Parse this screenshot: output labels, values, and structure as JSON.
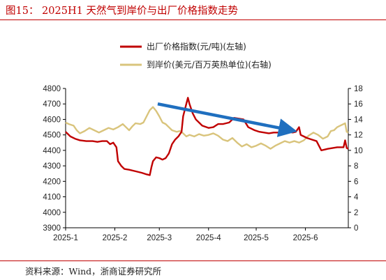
{
  "figure": {
    "title": "图15： 2025H1 天然气到岸价与出厂价格指数走势",
    "source": "资料来源：Wind，浙商证券研究所"
  },
  "colors": {
    "accent": "#c00000",
    "series_factory": "#c00000",
    "series_landed": "#d9c47c",
    "trend_arrow": "#1f6fbf",
    "axis": "#000000"
  },
  "chart_data": {
    "type": "line",
    "title": "",
    "x_ticks": [
      "2025-1",
      "2025-2",
      "2025-3",
      "2025-4",
      "2025-5",
      "2025-6"
    ],
    "x_range": [
      "2025-01-01",
      "2025-06-28"
    ],
    "left_axis": {
      "ylim": [
        3900,
        4800
      ],
      "ticks": [
        3900,
        4000,
        4100,
        4200,
        4300,
        4400,
        4500,
        4600,
        4700,
        4800
      ]
    },
    "right_axis": {
      "ylim": [
        0,
        18
      ],
      "ticks": [
        0,
        2,
        4,
        6,
        8,
        10,
        12,
        14,
        16,
        18
      ]
    },
    "legend_position": "top",
    "series": [
      {
        "name": "出厂价格指数(元/吨)(左轴)",
        "axis": "left",
        "points": [
          [
            "2025-01-01",
            4520
          ],
          [
            "2025-01-04",
            4490
          ],
          [
            "2025-01-07",
            4475
          ],
          [
            "2025-01-10",
            4465
          ],
          [
            "2025-01-14",
            4460
          ],
          [
            "2025-01-18",
            4460
          ],
          [
            "2025-01-21",
            4455
          ],
          [
            "2025-01-24",
            4460
          ],
          [
            "2025-01-27",
            4460
          ],
          [
            "2025-01-29",
            4440
          ],
          [
            "2025-01-31",
            4450
          ],
          [
            "2025-02-02",
            4420
          ],
          [
            "2025-02-03",
            4330
          ],
          [
            "2025-02-05",
            4300
          ],
          [
            "2025-02-07",
            4280
          ],
          [
            "2025-02-10",
            4275
          ],
          [
            "2025-02-14",
            4265
          ],
          [
            "2025-02-18",
            4255
          ],
          [
            "2025-02-21",
            4245
          ],
          [
            "2025-02-23",
            4240
          ],
          [
            "2025-02-24",
            4290
          ],
          [
            "2025-02-25",
            4330
          ],
          [
            "2025-02-27",
            4355
          ],
          [
            "2025-03-01",
            4350
          ],
          [
            "2025-03-03",
            4340
          ],
          [
            "2025-03-05",
            4350
          ],
          [
            "2025-03-07",
            4380
          ],
          [
            "2025-03-09",
            4440
          ],
          [
            "2025-03-11",
            4470
          ],
          [
            "2025-03-13",
            4490
          ],
          [
            "2025-03-15",
            4520
          ],
          [
            "2025-03-16",
            4620
          ],
          [
            "2025-03-18",
            4700
          ],
          [
            "2025-03-19",
            4740
          ],
          [
            "2025-03-20",
            4700
          ],
          [
            "2025-03-22",
            4640
          ],
          [
            "2025-03-24",
            4600
          ],
          [
            "2025-03-26",
            4580
          ],
          [
            "2025-03-28",
            4560
          ],
          [
            "2025-04-01",
            4545
          ],
          [
            "2025-04-04",
            4550
          ],
          [
            "2025-04-07",
            4570
          ],
          [
            "2025-04-10",
            4570
          ],
          [
            "2025-04-14",
            4580
          ],
          [
            "2025-04-17",
            4610
          ],
          [
            "2025-04-20",
            4605
          ],
          [
            "2025-04-23",
            4600
          ],
          [
            "2025-04-26",
            4550
          ],
          [
            "2025-04-30",
            4530
          ],
          [
            "2025-05-03",
            4520
          ],
          [
            "2025-05-06",
            4515
          ],
          [
            "2025-05-09",
            4510
          ],
          [
            "2025-05-12",
            4515
          ],
          [
            "2025-05-15",
            4515
          ],
          [
            "2025-05-18",
            4520
          ],
          [
            "2025-05-21",
            4520
          ],
          [
            "2025-05-24",
            4515
          ],
          [
            "2025-05-26",
            4520
          ],
          [
            "2025-05-28",
            4550
          ],
          [
            "2025-05-29",
            4500
          ],
          [
            "2025-05-31",
            4490
          ],
          [
            "2025-06-02",
            4480
          ],
          [
            "2025-06-05",
            4470
          ],
          [
            "2025-06-08",
            4460
          ],
          [
            "2025-06-10",
            4420
          ],
          [
            "2025-06-11",
            4400
          ],
          [
            "2025-06-13",
            4405
          ],
          [
            "2025-06-15",
            4410
          ],
          [
            "2025-06-18",
            4415
          ],
          [
            "2025-06-21",
            4420
          ],
          [
            "2025-06-23",
            4420
          ],
          [
            "2025-06-25",
            4420
          ],
          [
            "2025-06-26",
            4465
          ],
          [
            "2025-06-27",
            4415
          ],
          [
            "2025-06-28",
            4410
          ]
        ]
      },
      {
        "name": "到岸价(美元/百万英热单位)(右轴)",
        "axis": "right",
        "points": [
          [
            "2025-01-01",
            13.6
          ],
          [
            "2025-01-03",
            13.4
          ],
          [
            "2025-01-06",
            13.2
          ],
          [
            "2025-01-08",
            12.6
          ],
          [
            "2025-01-10",
            12.2
          ],
          [
            "2025-01-13",
            12.5
          ],
          [
            "2025-01-16",
            12.9
          ],
          [
            "2025-01-19",
            12.6
          ],
          [
            "2025-01-22",
            12.3
          ],
          [
            "2025-01-25",
            12.6
          ],
          [
            "2025-01-28",
            12.9
          ],
          [
            "2025-01-31",
            12.7
          ],
          [
            "2025-02-03",
            13.0
          ],
          [
            "2025-02-06",
            13.4
          ],
          [
            "2025-02-08",
            13.0
          ],
          [
            "2025-02-10",
            12.6
          ],
          [
            "2025-02-12",
            13.1
          ],
          [
            "2025-02-14",
            13.5
          ],
          [
            "2025-02-17",
            13.4
          ],
          [
            "2025-02-19",
            13.6
          ],
          [
            "2025-02-21",
            14.4
          ],
          [
            "2025-02-23",
            15.2
          ],
          [
            "2025-02-25",
            15.6
          ],
          [
            "2025-02-27",
            15.1
          ],
          [
            "2025-03-01",
            14.4
          ],
          [
            "2025-03-03",
            13.6
          ],
          [
            "2025-03-05",
            13.4
          ],
          [
            "2025-03-07",
            13.0
          ],
          [
            "2025-03-09",
            12.6
          ],
          [
            "2025-03-12",
            12.4
          ],
          [
            "2025-03-14",
            12.5
          ],
          [
            "2025-03-16",
            12.2
          ],
          [
            "2025-03-18",
            11.8
          ],
          [
            "2025-03-20",
            12.0
          ],
          [
            "2025-03-23",
            11.8
          ],
          [
            "2025-03-26",
            12.1
          ],
          [
            "2025-03-29",
            11.9
          ],
          [
            "2025-04-01",
            12.0
          ],
          [
            "2025-04-04",
            12.2
          ],
          [
            "2025-04-07",
            11.9
          ],
          [
            "2025-04-10",
            11.4
          ],
          [
            "2025-04-13",
            11.2
          ],
          [
            "2025-04-16",
            11.6
          ],
          [
            "2025-04-19",
            11.0
          ],
          [
            "2025-04-22",
            10.5
          ],
          [
            "2025-04-25",
            10.8
          ],
          [
            "2025-04-28",
            10.4
          ],
          [
            "2025-05-01",
            10.6
          ],
          [
            "2025-05-04",
            10.9
          ],
          [
            "2025-05-07",
            10.6
          ],
          [
            "2025-05-10",
            10.2
          ],
          [
            "2025-05-13",
            10.6
          ],
          [
            "2025-05-16",
            10.9
          ],
          [
            "2025-05-19",
            11.2
          ],
          [
            "2025-05-22",
            11.0
          ],
          [
            "2025-05-25",
            11.2
          ],
          [
            "2025-05-28",
            11.0
          ],
          [
            "2025-05-31",
            11.3
          ],
          [
            "2025-06-03",
            11.9
          ],
          [
            "2025-06-06",
            12.3
          ],
          [
            "2025-06-09",
            12.0
          ],
          [
            "2025-06-12",
            11.5
          ],
          [
            "2025-06-15",
            11.8
          ],
          [
            "2025-06-17",
            12.5
          ],
          [
            "2025-06-19",
            12.6
          ],
          [
            "2025-06-21",
            13.0
          ],
          [
            "2025-06-23",
            13.2
          ],
          [
            "2025-06-25",
            13.4
          ],
          [
            "2025-06-26",
            13.5
          ],
          [
            "2025-06-27",
            12.4
          ],
          [
            "2025-06-28",
            12.3
          ]
        ]
      }
    ],
    "annotations": [
      {
        "type": "arrow",
        "from": [
          "2025-02-28",
          4700
        ],
        "to": [
          "2025-05-23",
          4530
        ]
      }
    ]
  }
}
